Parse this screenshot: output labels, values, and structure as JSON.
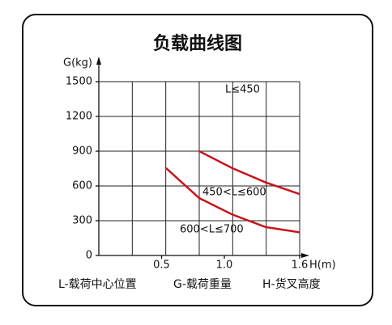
{
  "chart_data": {
    "type": "line",
    "title": "负载曲线图",
    "ylabel": "G(kg)",
    "xlabel": "H(m)",
    "xlim": [
      0,
      1.6
    ],
    "ylim": [
      0,
      1500
    ],
    "xticks": [
      0.5,
      {
        "value": 1,
        "label": "1.0"
      },
      1.6
    ],
    "yticks": [
      0,
      300,
      600,
      900,
      1200,
      1500
    ],
    "annotations": [
      "L≤450"
    ],
    "series": [
      {
        "name": "450<L≤600",
        "color": "#c8141e",
        "x": [
          0.8,
          1.06,
          1.33,
          1.6
        ],
        "values": [
          900,
          755,
          630,
          530
        ]
      },
      {
        "name": "600<L≤700",
        "color": "#c8141e",
        "x": [
          0.535,
          0.8,
          1.06,
          1.33,
          1.6
        ],
        "values": [
          755,
          495,
          355,
          245,
          200
        ]
      }
    ],
    "footnotes": [
      "L-载荷中心位置",
      "G-载荷重量",
      "H-货叉高度"
    ]
  }
}
